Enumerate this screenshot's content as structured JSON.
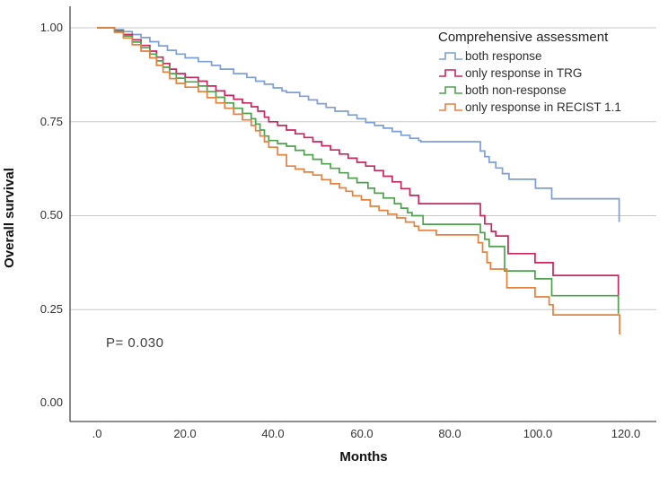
{
  "chart_data": {
    "type": "line",
    "subtype": "kaplan-meier-step-curves",
    "title": "",
    "xlabel": "Months",
    "ylabel": "Overall survival",
    "xlim": [
      0,
      120
    ],
    "ylim": [
      0.0,
      1.0
    ],
    "grid": "horizontal gridlines at 0.25, 0.50, 0.75, 1.00",
    "x_tick_labels": [
      ".0",
      "20.0",
      "40.0",
      "60.0",
      "80.0",
      "100.0",
      "120.0"
    ],
    "x_tick_values": [
      0,
      20,
      40,
      60,
      80,
      100,
      120
    ],
    "y_tick_labels": [
      "1.00",
      "0.75",
      "0.50",
      "0.25",
      "0.00"
    ],
    "y_tick_values": [
      1.0,
      0.75,
      0.5,
      0.25,
      0.0
    ],
    "gridline_color": "#c9c9c9",
    "axis_color": "#4a4a4a",
    "legend": {
      "title": "Comprehensive assessment",
      "position": "top-right-inside"
    },
    "annotation": {
      "p_value_text": "P= 0.030"
    },
    "series": [
      {
        "name": "both response",
        "color": "#7d9ed8",
        "points": [
          [
            0,
            1.0
          ],
          [
            4,
            0.995
          ],
          [
            6,
            0.99
          ],
          [
            8,
            0.982
          ],
          [
            10,
            0.974
          ],
          [
            12,
            0.963
          ],
          [
            14,
            0.952
          ],
          [
            16,
            0.94
          ],
          [
            18,
            0.93
          ],
          [
            20,
            0.92
          ],
          [
            23,
            0.91
          ],
          [
            26,
            0.9
          ],
          [
            28,
            0.89
          ],
          [
            31,
            0.878
          ],
          [
            34,
            0.868
          ],
          [
            36,
            0.858
          ],
          [
            38,
            0.85
          ],
          [
            40,
            0.84
          ],
          [
            42,
            0.832
          ],
          [
            43,
            0.828
          ],
          [
            46,
            0.818
          ],
          [
            48,
            0.808
          ],
          [
            50,
            0.798
          ],
          [
            52,
            0.788
          ],
          [
            54,
            0.778
          ],
          [
            57,
            0.768
          ],
          [
            59,
            0.758
          ],
          [
            61,
            0.748
          ],
          [
            63,
            0.74
          ],
          [
            65,
            0.733
          ],
          [
            67,
            0.724
          ],
          [
            69,
            0.714
          ],
          [
            71,
            0.706
          ],
          [
            73,
            0.7
          ],
          [
            73.5,
            0.697
          ],
          [
            87,
            0.672
          ],
          [
            88,
            0.657
          ],
          [
            89,
            0.642
          ],
          [
            90.5,
            0.627
          ],
          [
            92,
            0.612
          ],
          [
            93.5,
            0.597
          ],
          [
            99.5,
            0.573
          ],
          [
            103.2,
            0.545
          ],
          [
            118.5,
            0.483
          ]
        ]
      },
      {
        "name": "only response in TRG",
        "color": "#c9265e",
        "points": [
          [
            0,
            1.0
          ],
          [
            4,
            0.992
          ],
          [
            6,
            0.982
          ],
          [
            8,
            0.968
          ],
          [
            10,
            0.953
          ],
          [
            12,
            0.938
          ],
          [
            13.5,
            0.922
          ],
          [
            15,
            0.905
          ],
          [
            16.5,
            0.89
          ],
          [
            18,
            0.878
          ],
          [
            20,
            0.868
          ],
          [
            23,
            0.858
          ],
          [
            25,
            0.845
          ],
          [
            27,
            0.832
          ],
          [
            29,
            0.82
          ],
          [
            31,
            0.81
          ],
          [
            33,
            0.8
          ],
          [
            35,
            0.79
          ],
          [
            36.5,
            0.778
          ],
          [
            38,
            0.762
          ],
          [
            39,
            0.75
          ],
          [
            41,
            0.74
          ],
          [
            43,
            0.728
          ],
          [
            45,
            0.718
          ],
          [
            47,
            0.708
          ],
          [
            49,
            0.697
          ],
          [
            51,
            0.686
          ],
          [
            53,
            0.675
          ],
          [
            55,
            0.664
          ],
          [
            57,
            0.653
          ],
          [
            59,
            0.642
          ],
          [
            61,
            0.632
          ],
          [
            63,
            0.62
          ],
          [
            65,
            0.605
          ],
          [
            67,
            0.59
          ],
          [
            69,
            0.572
          ],
          [
            71,
            0.554
          ],
          [
            73,
            0.532
          ],
          [
            87,
            0.5
          ],
          [
            88,
            0.478
          ],
          [
            89.5,
            0.458
          ],
          [
            90.5,
            0.446
          ],
          [
            93.3,
            0.399
          ],
          [
            99.4,
            0.375
          ],
          [
            103.5,
            0.341
          ],
          [
            118.3,
            0.282
          ]
        ]
      },
      {
        "name": "both non-response",
        "color": "#4ea24e",
        "points": [
          [
            0,
            1.0
          ],
          [
            4,
            0.99
          ],
          [
            6,
            0.978
          ],
          [
            8,
            0.962
          ],
          [
            10,
            0.947
          ],
          [
            12,
            0.93
          ],
          [
            13.5,
            0.912
          ],
          [
            15,
            0.895
          ],
          [
            16.5,
            0.878
          ],
          [
            18,
            0.866
          ],
          [
            20,
            0.856
          ],
          [
            23,
            0.845
          ],
          [
            25,
            0.83
          ],
          [
            27,
            0.815
          ],
          [
            29,
            0.8
          ],
          [
            31,
            0.786
          ],
          [
            33,
            0.772
          ],
          [
            35,
            0.758
          ],
          [
            36,
            0.744
          ],
          [
            37,
            0.728
          ],
          [
            38,
            0.712
          ],
          [
            39,
            0.7
          ],
          [
            41,
            0.692
          ],
          [
            43,
            0.685
          ],
          [
            45,
            0.674
          ],
          [
            47,
            0.662
          ],
          [
            49,
            0.65
          ],
          [
            51,
            0.638
          ],
          [
            53,
            0.626
          ],
          [
            55,
            0.614
          ],
          [
            57,
            0.6
          ],
          [
            59,
            0.588
          ],
          [
            61.5,
            0.573
          ],
          [
            63,
            0.56
          ],
          [
            65,
            0.547
          ],
          [
            67.5,
            0.532
          ],
          [
            69,
            0.52
          ],
          [
            70.5,
            0.508
          ],
          [
            71.5,
            0.5
          ],
          [
            74,
            0.477
          ],
          [
            87,
            0.455
          ],
          [
            88,
            0.437
          ],
          [
            89,
            0.418
          ],
          [
            92.5,
            0.353
          ],
          [
            99.4,
            0.332
          ],
          [
            103.2,
            0.287
          ],
          [
            118.3,
            0.239
          ]
        ]
      },
      {
        "name": "only response in RECIST 1.1",
        "color": "#e5813d",
        "points": [
          [
            0,
            1.0
          ],
          [
            4,
            0.988
          ],
          [
            6,
            0.973
          ],
          [
            8,
            0.955
          ],
          [
            10,
            0.938
          ],
          [
            12,
            0.92
          ],
          [
            13.5,
            0.9
          ],
          [
            15,
            0.882
          ],
          [
            16.5,
            0.865
          ],
          [
            18,
            0.852
          ],
          [
            20,
            0.842
          ],
          [
            23,
            0.83
          ],
          [
            25,
            0.814
          ],
          [
            27,
            0.8
          ],
          [
            29,
            0.786
          ],
          [
            31,
            0.77
          ],
          [
            33,
            0.755
          ],
          [
            35,
            0.74
          ],
          [
            36,
            0.726
          ],
          [
            37,
            0.712
          ],
          [
            38,
            0.697
          ],
          [
            39,
            0.682
          ],
          [
            41,
            0.662
          ],
          [
            43,
            0.632
          ],
          [
            45,
            0.624
          ],
          [
            47,
            0.616
          ],
          [
            49,
            0.608
          ],
          [
            51,
            0.596
          ],
          [
            53,
            0.585
          ],
          [
            55,
            0.574
          ],
          [
            56.5,
            0.565
          ],
          [
            58,
            0.553
          ],
          [
            60,
            0.542
          ],
          [
            62,
            0.525
          ],
          [
            64,
            0.514
          ],
          [
            66,
            0.504
          ],
          [
            68,
            0.494
          ],
          [
            70,
            0.483
          ],
          [
            72,
            0.472
          ],
          [
            73,
            0.461
          ],
          [
            77,
            0.449
          ],
          [
            86.5,
            0.428
          ],
          [
            87.5,
            0.403
          ],
          [
            88.5,
            0.375
          ],
          [
            89.3,
            0.358
          ],
          [
            93,
            0.308
          ],
          [
            99.4,
            0.284
          ],
          [
            102.6,
            0.263
          ],
          [
            103.5,
            0.236
          ],
          [
            118.6,
            0.184
          ]
        ]
      }
    ]
  }
}
